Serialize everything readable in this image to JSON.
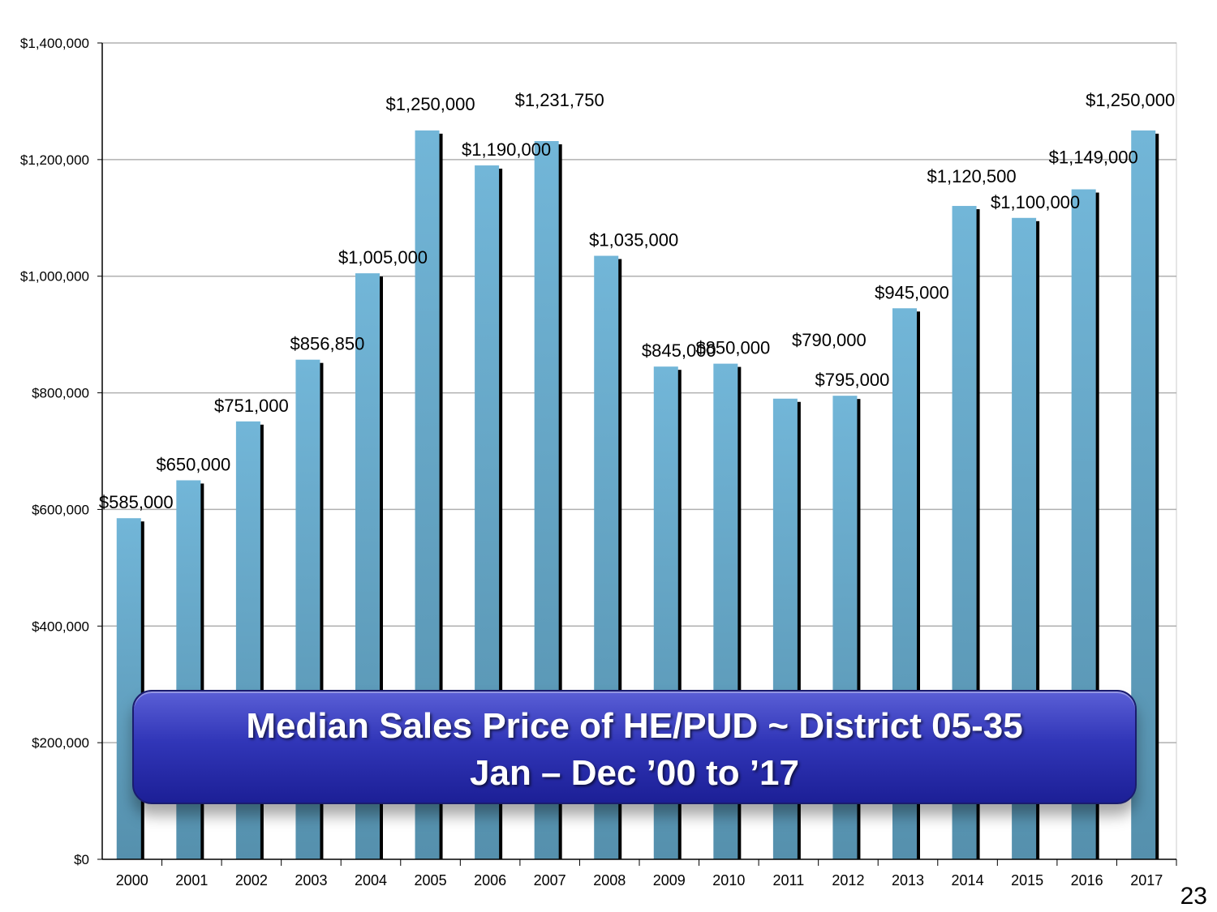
{
  "chart_data": {
    "type": "bar",
    "title": "Median Sales Price of HE/PUD ~ District 05-35",
    "subtitle": "Jan – Dec ’00 to ’17",
    "categories": [
      "2000",
      "2001",
      "2002",
      "2003",
      "2004",
      "2005",
      "2006",
      "2007",
      "2008",
      "2009",
      "2010",
      "2011",
      "2012",
      "2013",
      "2014",
      "2015",
      "2016",
      "2017"
    ],
    "values": [
      585000,
      650000,
      751000,
      856850,
      1005000,
      1250000,
      1190000,
      1231750,
      1035000,
      845000,
      850000,
      790000,
      795000,
      945000,
      1120500,
      1100000,
      1149000,
      1250000
    ],
    "data_labels": [
      "$585,000",
      "$650,000",
      "$751,000",
      "$856,850",
      "$1,005,000",
      "$1,250,000",
      "$1,190,000",
      "$1,231,750",
      "$1,035,000",
      "$845,000",
      "$850,000",
      "$790,000",
      "$795,000",
      "$945,000",
      "$1,120,500",
      "$1,100,000",
      "$1,149,000",
      "$1,250,000"
    ],
    "y_ticks": [
      0,
      200000,
      400000,
      600000,
      800000,
      1000000,
      1200000,
      1400000
    ],
    "y_tick_labels": [
      "$0",
      "$200,000",
      "$400,000",
      "$600,000",
      "$800,000",
      "$1,000,000",
      "$1,200,000",
      "$1,400,000"
    ],
    "ylim": [
      0,
      1400000
    ],
    "xlabel": "",
    "ylabel": "",
    "grid": true,
    "legend": "none",
    "bar_color": "#6aaed0",
    "bar_shadow_color": "#000000"
  },
  "page_number": "23"
}
